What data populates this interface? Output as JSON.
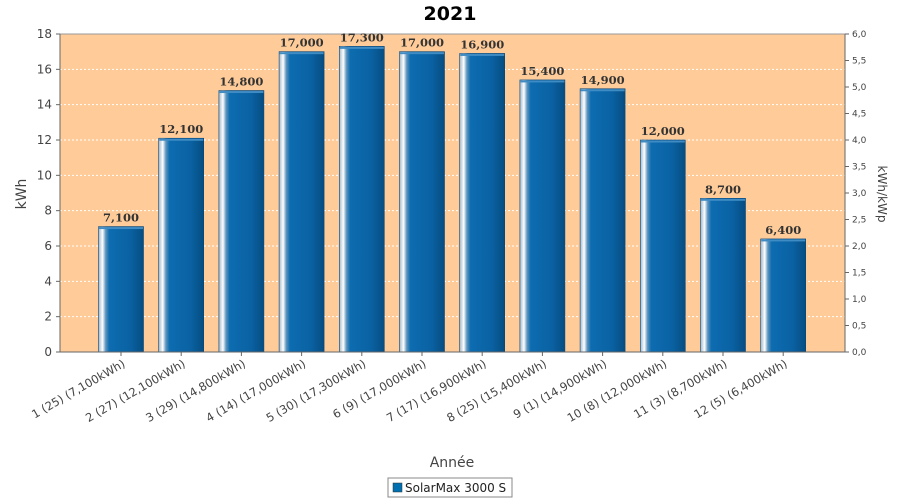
{
  "chart_data": {
    "type": "bar",
    "title": "2021",
    "xlabel": "Année",
    "ylabel": "kWh",
    "y2label": "kWh/kWp",
    "ylim": [
      0,
      18
    ],
    "y2lim": [
      0,
      6
    ],
    "yticks": [
      "0",
      "2",
      "4",
      "6",
      "8",
      "10",
      "12",
      "14",
      "16",
      "18"
    ],
    "y2ticks": [
      "0,0",
      "0,5",
      "1,0",
      "1,5",
      "2,0",
      "2,5",
      "3,0",
      "3,5",
      "4,0",
      "4,5",
      "5,0",
      "5,5",
      "6,0"
    ],
    "categories": [
      "1 (25)  (7,100kWh)",
      "2 (27)  (12,100kWh)",
      "3 (29)  (14,800kWh)",
      "4 (14)  (17,000kWh)",
      "5 (30)  (17,300kWh)",
      "6 (9)  (17,000kWh)",
      "7 (17)  (16,900kWh)",
      "8 (25)  (15,400kWh)",
      "9 (1)  (14,900kWh)",
      "10 (8)  (12,000kWh)",
      "11 (3)  (8,700kWh)",
      "12 (5)  (6,400kWh)"
    ],
    "series": [
      {
        "name": "SolarMax 3000 S",
        "values": [
          7.1,
          12.1,
          14.8,
          17.0,
          17.3,
          17.0,
          16.9,
          15.4,
          14.9,
          12.0,
          8.7,
          6.4
        ],
        "labels": [
          "7,100",
          "12,100",
          "14,800",
          "17,000",
          "17,300",
          "17,000",
          "16,900",
          "15,400",
          "14,900",
          "12,000",
          "8,700",
          "6,400"
        ],
        "color": "#0070b0"
      }
    ],
    "plot_background": "#ffcc99",
    "grid": true,
    "legend_position": "bottom-center"
  }
}
